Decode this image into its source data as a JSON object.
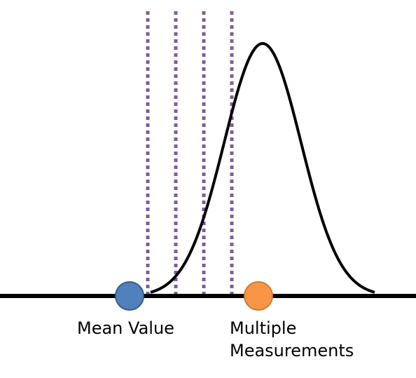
{
  "labels": {
    "mean_value": "Mean Value",
    "multiple_measurements_line1": "Multiple",
    "multiple_measurements_line2": "Measurements"
  },
  "colors": {
    "axis": "#000000",
    "curve": "#000000",
    "dotted_lines": "#7a5f98",
    "mean_marker_fill": "#4f81bd",
    "mean_marker_stroke": "#385d8a",
    "measurement_marker_fill": "#f79646",
    "measurement_marker_stroke": "#d07a2e"
  },
  "diagram": {
    "curve_shape": "gaussian",
    "dotted_line_count": 4,
    "markers": [
      "mean-value-marker",
      "multiple-measurements-marker"
    ]
  }
}
